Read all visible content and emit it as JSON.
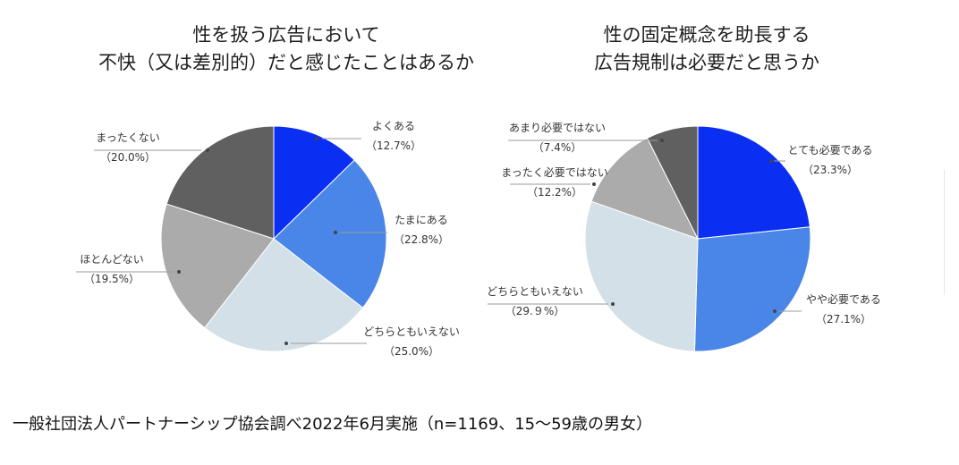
{
  "chart_data": [
    {
      "type": "pie",
      "title": "性を扱う広告において\n不快（又は差別的）だと感じたことはあるか",
      "title_lines": [
        "性を扱う広告において",
        "不快（又は差別的）だと感じたことはあるか"
      ],
      "slices": [
        {
          "label": "よくある",
          "value": 12.7,
          "value_text": "（12.7%）",
          "color": "#0b2ff2"
        },
        {
          "label": "たまにある",
          "value": 22.8,
          "value_text": "（22.8%）",
          "color": "#4a86e8"
        },
        {
          "label": "どちらともいえない",
          "value": 25.0,
          "value_text": "（25.0%）",
          "color": "#d4e0e8"
        },
        {
          "label": "ほとんどない",
          "value": 19.5,
          "value_text": "（19.5%）",
          "color": "#ababab"
        },
        {
          "label": "まったくない",
          "value": 20.0,
          "value_text": "（20.0%）",
          "color": "#606060"
        }
      ]
    },
    {
      "type": "pie",
      "title": "性の固定概念を助長する\n広告規制は必要だと思うか",
      "title_lines": [
        "性の固定概念を助長する",
        "広告規制は必要だと思うか"
      ],
      "slices": [
        {
          "label": "とても必要である",
          "value": 23.3,
          "value_text": "（23.3%）",
          "color": "#0b2ff2"
        },
        {
          "label": "やや必要である",
          "value": 27.1,
          "value_text": "（27.1%）",
          "color": "#4a86e8"
        },
        {
          "label": "どちらともいえない",
          "value": 29.9,
          "value_text": "（29.９%）",
          "color": "#d4e0e8"
        },
        {
          "label": "まったく必要ではない",
          "value": 12.2,
          "value_text": "（12.2%）",
          "color": "#ababab"
        },
        {
          "label": "あまり必要ではない",
          "value": 7.4,
          "value_text": "（7.4%）",
          "color": "#606060"
        }
      ]
    }
  ],
  "footer": "一般社団法人パートナーシップ協会調べ2022年6月実施（n=1169、15〜59歳の男女）"
}
